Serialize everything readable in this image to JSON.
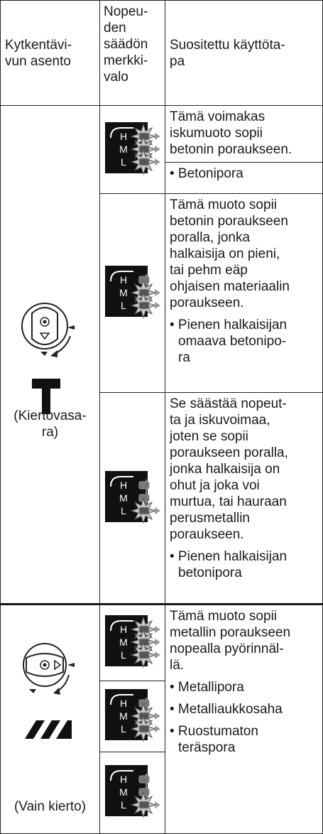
{
  "header": {
    "col1": [
      "Kytkentävi-",
      "vun asento"
    ],
    "col2": [
      "Nopeu-",
      "den",
      "säädön",
      "merkki-",
      "valo"
    ],
    "col3": [
      "Suositettu käyttöta-",
      "pa"
    ]
  },
  "indicator_letters": [
    "H",
    "M",
    "L"
  ],
  "groups": [
    {
      "mode": [
        "(Kiertovasa-",
        "ra)"
      ],
      "rows": [
        {
          "lit": [
            true,
            true,
            true
          ],
          "description": [
            "Tämä voimakas",
            "iskumuoto sopii",
            "betonin poraukseen."
          ],
          "bullets": [
            [
              "• Betonipora"
            ]
          ]
        },
        {
          "lit": [
            false,
            true,
            true
          ],
          "description": [
            "Tämä muoto sopii",
            "betonin poraukseen",
            "poralla, jonka",
            "halkaisija on pieni,",
            "tai pehm eäp",
            "ohjaisen materiaalin",
            "poraukseen."
          ],
          "bullets": [
            [
              "• Pienen halkaisijan",
              "omaava betonipo-",
              "ra"
            ]
          ]
        },
        {
          "lit": [
            false,
            false,
            true
          ],
          "description": [
            "Se säästää nopeut-",
            "ta ja iskuvoimaa,",
            "joten se sopii",
            "poraukseen poralla,",
            "jonka halkaisija on",
            "ohut ja joka voi",
            "murtua, tai hauraan",
            "perusmetallin",
            "poraukseen."
          ],
          "bullets": [
            [
              "• Pienen halkaisijan",
              "betonipora"
            ]
          ]
        }
      ]
    },
    {
      "mode": [
        "(Vain kierto)"
      ],
      "indicators": [
        {
          "lit": [
            true,
            true,
            true
          ]
        },
        {
          "lit": [
            false,
            true,
            true
          ]
        },
        {
          "lit": [
            false,
            false,
            true
          ]
        }
      ],
      "description": [
        "Tämä muoto sopii",
        "metallin poraukseen",
        "nopealla pyörinnäl-",
        "lä."
      ],
      "bullets": [
        [
          "• Metallipora"
        ],
        [
          "• Metalliaukkosaha"
        ],
        [
          "• Ruostumaton",
          "teräspora"
        ]
      ]
    }
  ]
}
